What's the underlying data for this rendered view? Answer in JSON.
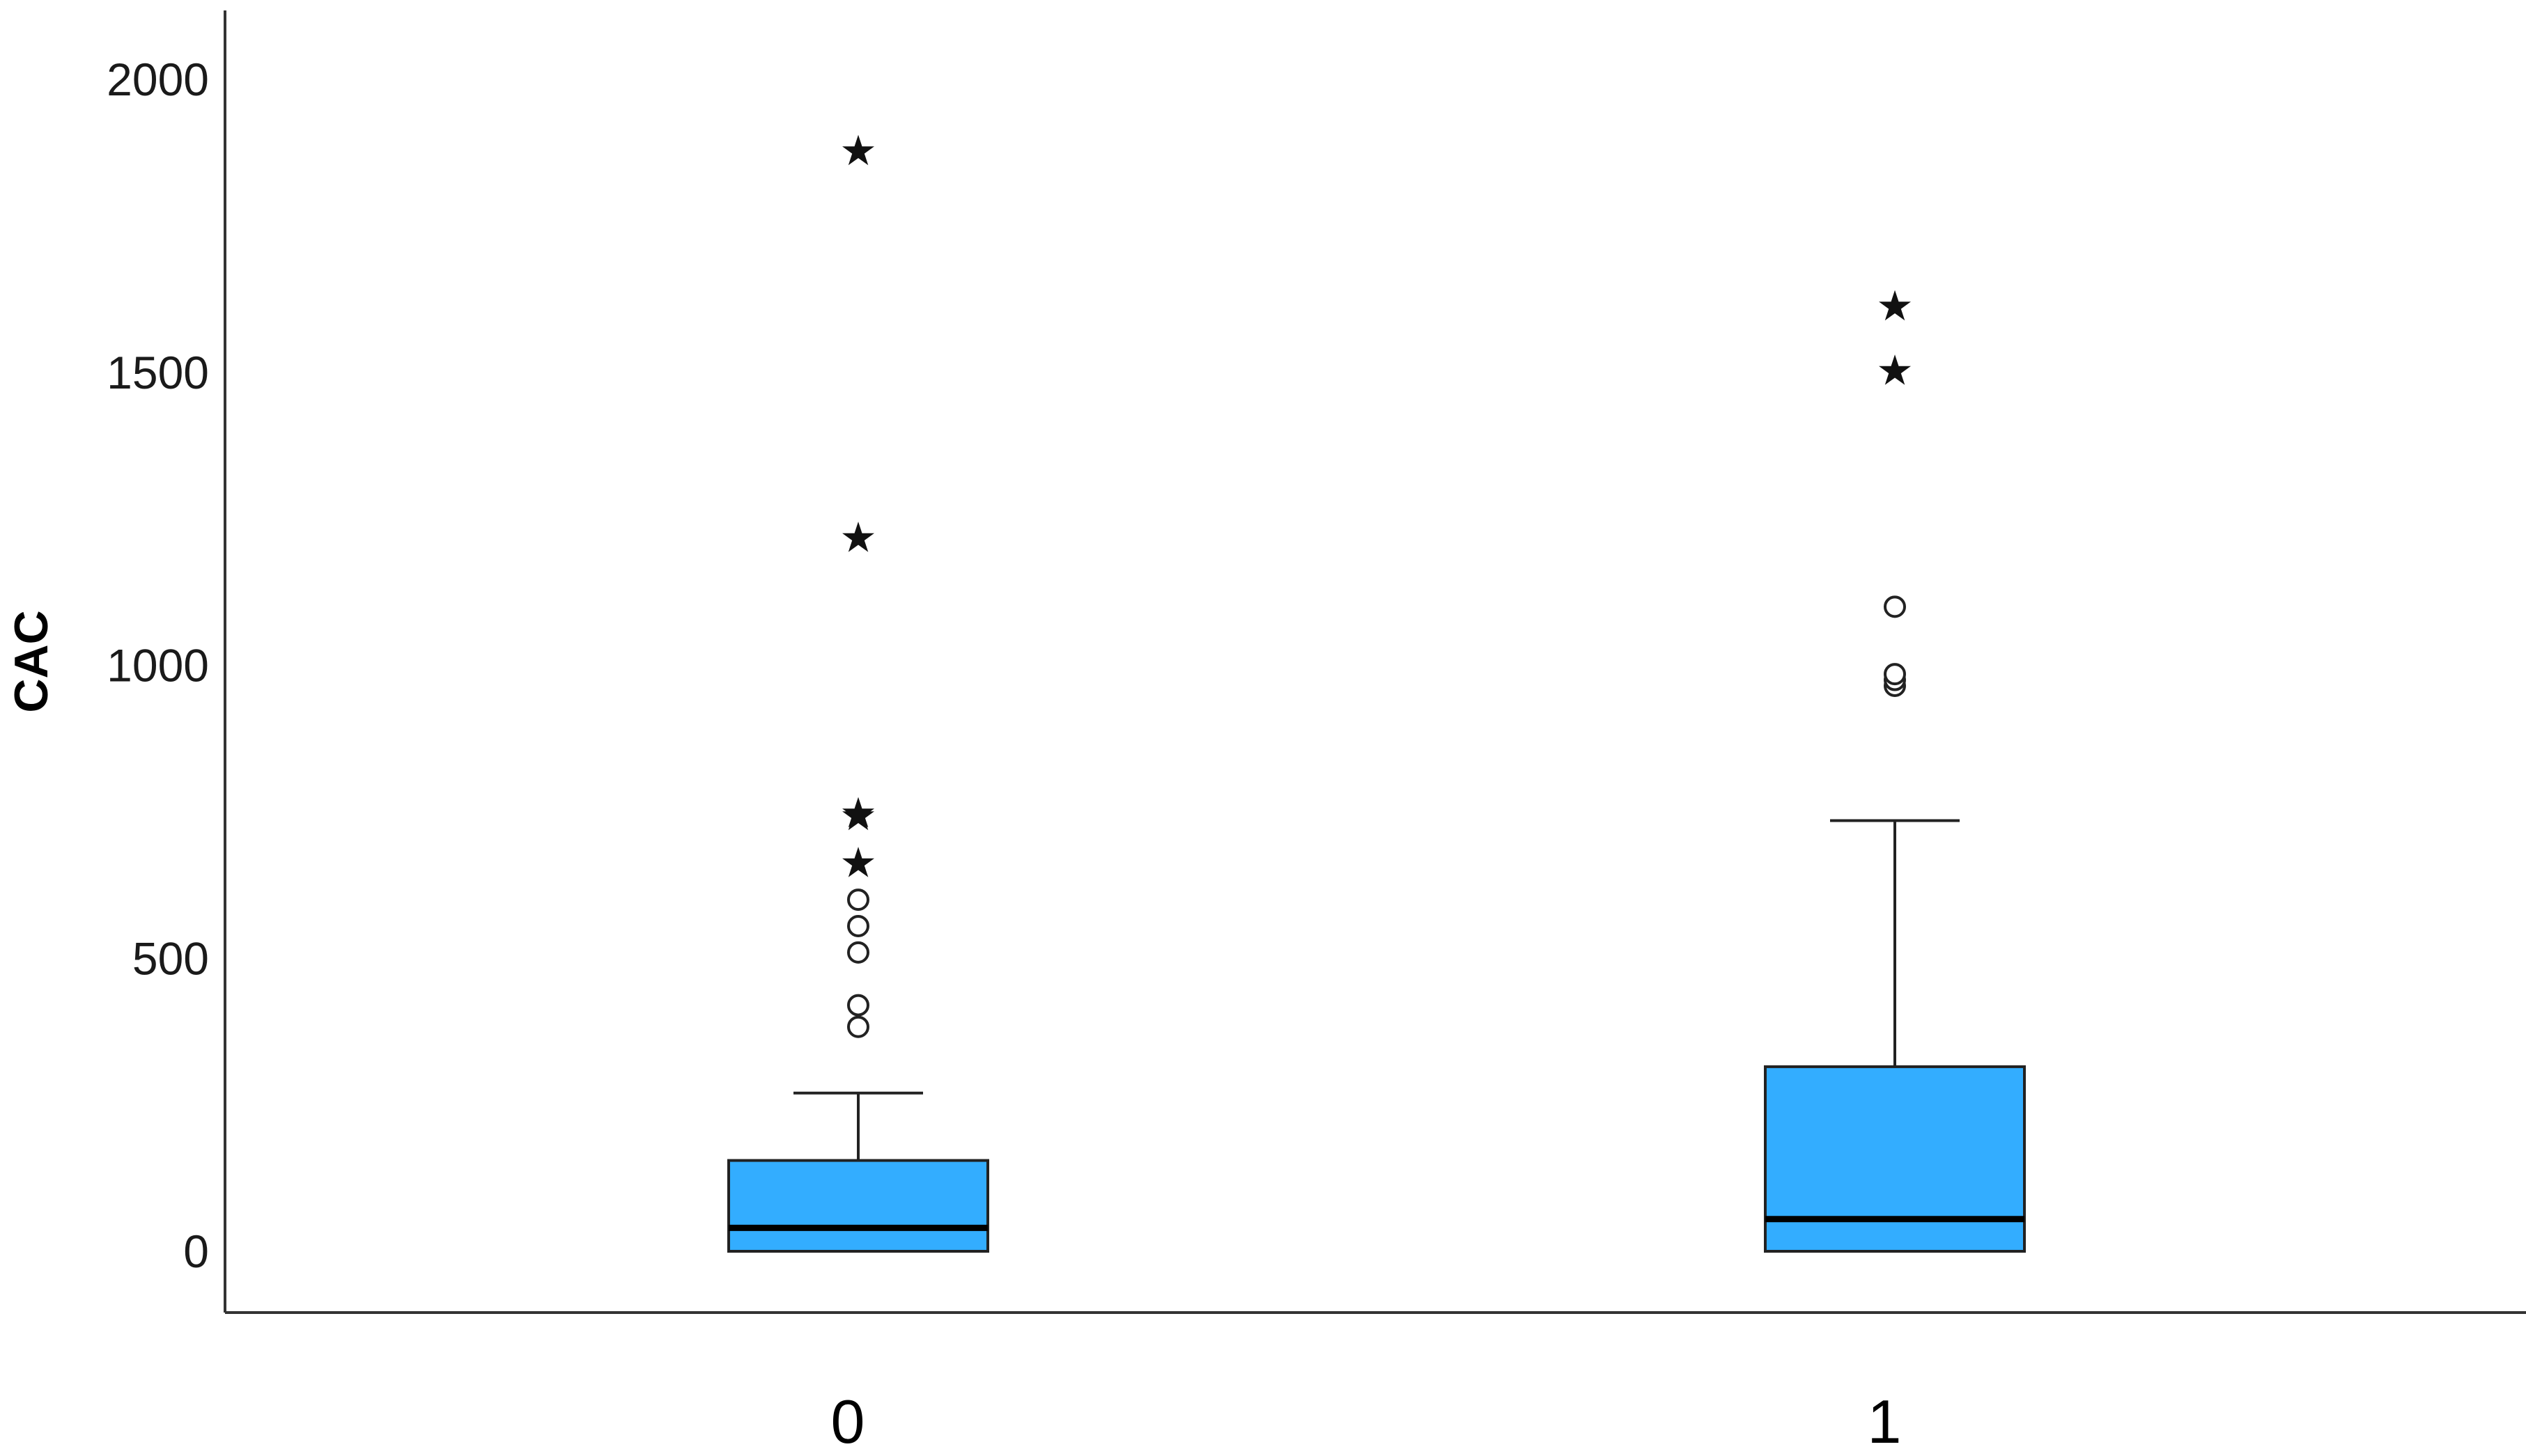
{
  "chart_data": {
    "type": "boxplot",
    "ylabel": "CAC",
    "xlabel": "",
    "ylim": [
      -100,
      2120
    ],
    "y_ticks": [
      0,
      500,
      1000,
      1500,
      2000
    ],
    "y_tick_labels": [
      "0",
      "500",
      "1000",
      "1500",
      "2000"
    ],
    "grid": false,
    "box_color": "#33adff",
    "categories": [
      "0",
      "1"
    ],
    "groups": [
      {
        "category": "0",
        "whisker_low": 0,
        "q1": 0,
        "median": 40,
        "q3": 155,
        "whisker_high": 270,
        "outliers": [
          383,
          420,
          510,
          555,
          600
        ],
        "extremes": [
          665,
          745,
          750,
          1220,
          1880
        ]
      },
      {
        "category": "1",
        "whisker_low": 0,
        "q1": 0,
        "median": 55,
        "q3": 315,
        "whisker_high": 735,
        "outliers": [
          965,
          975,
          985,
          1100
        ],
        "extremes": [
          1505,
          1615
        ]
      }
    ]
  }
}
